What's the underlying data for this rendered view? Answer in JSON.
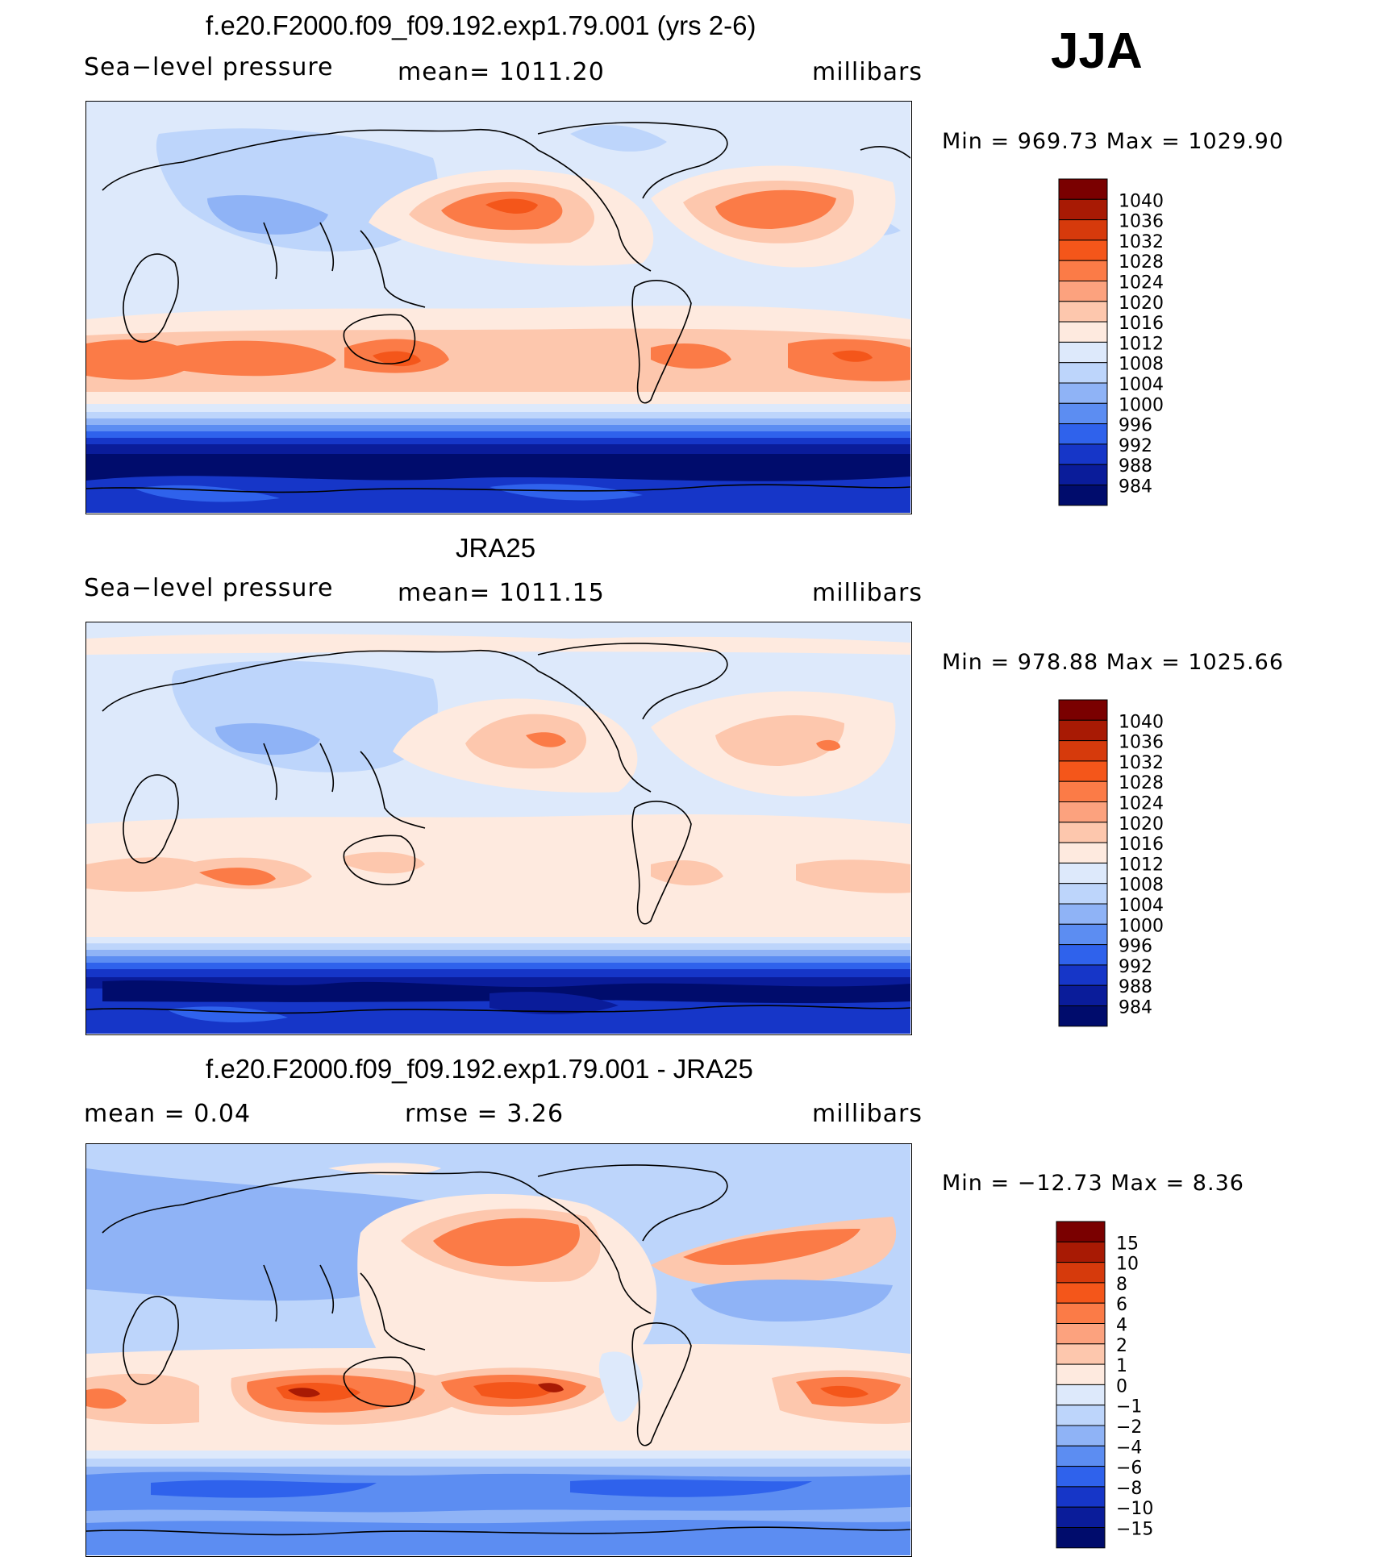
{
  "season": "JJA",
  "panels": [
    {
      "title": "f.e20.F2000.f09_f09.192.exp1.79.001 (yrs 2-6)",
      "left_label": "Sea−level pressure",
      "center_label": "mean=  1011.20",
      "right_label": "millibars",
      "minmax": "Min  =  969.73  Max  =  1029.90"
    },
    {
      "title": "JRA25",
      "left_label": "Sea−level pressure",
      "center_label": "mean=  1011.15",
      "right_label": "millibars",
      "minmax": "Min  =  978.88  Max  =  1025.66"
    },
    {
      "title": "f.e20.F2000.f09_f09.192.exp1.79.001 - JRA25",
      "left_label": "mean  =      0.04",
      "center_label": "rmse  =      3.26",
      "right_label": "millibars",
      "minmax": "Min  =  −12.73  Max  =       8.36"
    }
  ],
  "chart_data": [
    {
      "type": "heatmap",
      "title": "f.e20.F2000.f09_f09.192.exp1.79.001 (yrs 2-6)",
      "variable": "Sea-level pressure",
      "units": "millibars",
      "mean": 1011.2,
      "min": 969.73,
      "max": 1029.9,
      "contour_levels": [
        984,
        988,
        992,
        996,
        1000,
        1004,
        1008,
        1012,
        1016,
        1020,
        1024,
        1028,
        1032,
        1036,
        1040
      ],
      "colorbar_labels": [
        "1040",
        "1036",
        "1032",
        "1028",
        "1024",
        "1020",
        "1016",
        "1012",
        "1008",
        "1004",
        "1000",
        "996",
        "992",
        "988",
        "984"
      ]
    },
    {
      "type": "heatmap",
      "title": "JRA25",
      "variable": "Sea-level pressure",
      "units": "millibars",
      "mean": 1011.15,
      "min": 978.88,
      "max": 1025.66,
      "contour_levels": [
        984,
        988,
        992,
        996,
        1000,
        1004,
        1008,
        1012,
        1016,
        1020,
        1024,
        1028,
        1032,
        1036,
        1040
      ],
      "colorbar_labels": [
        "1040",
        "1036",
        "1032",
        "1028",
        "1024",
        "1020",
        "1016",
        "1012",
        "1008",
        "1004",
        "1000",
        "996",
        "992",
        "988",
        "984"
      ]
    },
    {
      "type": "heatmap",
      "title": "f.e20.F2000.f09_f09.192.exp1.79.001 - JRA25",
      "units": "millibars",
      "mean": 0.04,
      "rmse": 3.26,
      "min": -12.73,
      "max": 8.36,
      "contour_levels": [
        -15,
        -10,
        -8,
        -6,
        -4,
        -2,
        -1,
        0,
        1,
        2,
        4,
        6,
        8,
        10,
        15
      ],
      "colorbar_labels": [
        "15",
        "10",
        "8",
        "6",
        "4",
        "2",
        "1",
        "0",
        "−1",
        "−2",
        "−4",
        "−6",
        "−8",
        "−10",
        "−15"
      ]
    }
  ],
  "colors": {
    "palette": [
      "#7a0000",
      "#a81a04",
      "#d63a0c",
      "#f4561a",
      "#fb7b47",
      "#fca27e",
      "#fdc7ad",
      "#feeadf",
      "#dde9fb",
      "#bdd5fb",
      "#8fb3f6",
      "#5c8df2",
      "#2f62ec",
      "#1636c8",
      "#0a1c9a",
      "#000c6c"
    ]
  }
}
